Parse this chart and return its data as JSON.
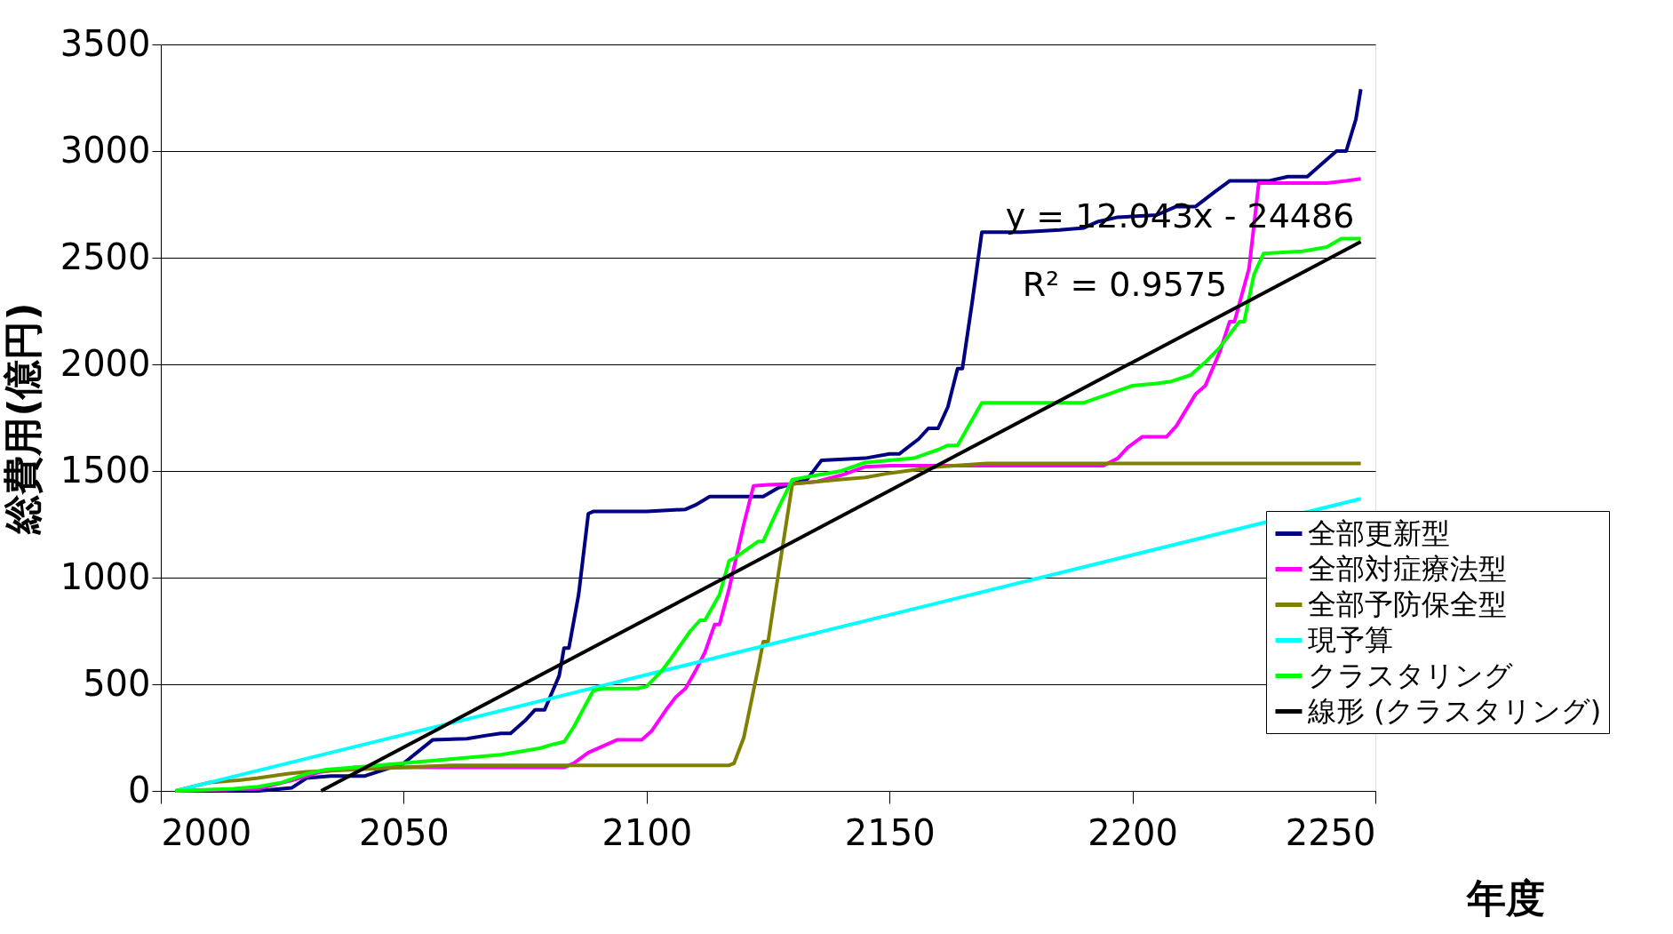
{
  "chart_data": {
    "type": "line",
    "xlabel": "年度",
    "ylabel": "総費用(億円)",
    "xlim": [
      2000,
      2250
    ],
    "xticks": [
      2000,
      2050,
      2100,
      2150,
      2200,
      2250
    ],
    "ylim": [
      0,
      3500
    ],
    "yticks": [
      0,
      500,
      1000,
      1500,
      2000,
      2500,
      3000,
      3500
    ],
    "grid": "y",
    "legend": "bottom right",
    "marker": "none",
    "line_style": "solid",
    "annotations": [
      "y = 12.043x - 24486",
      "R² = 0.9575"
    ],
    "series": [
      {
        "name": "全部更新型",
        "color": "#000080",
        "x": [
          2003,
          2020,
          2027,
          2030,
          2035,
          2042,
          2046,
          2050,
          2056,
          2063,
          2067,
          2070,
          2072,
          2075,
          2077,
          2079,
          2082,
          2083,
          2084,
          2086,
          2088,
          2089,
          2100,
          2108,
          2110,
          2113,
          2124,
          2127,
          2130,
          2133,
          2136,
          2145,
          2150,
          2152,
          2156,
          2158,
          2160,
          2162,
          2164,
          2165,
          2167,
          2169,
          2177,
          2185,
          2190,
          2193,
          2197,
          2205,
          2209,
          2213,
          2217,
          2220,
          2228,
          2232,
          2236,
          2240,
          2242,
          2244,
          2246,
          2247
        ],
        "values": [
          0,
          0,
          15,
          60,
          70,
          70,
          100,
          130,
          240,
          245,
          260,
          270,
          270,
          330,
          380,
          380,
          540,
          670,
          670,
          920,
          1300,
          1310,
          1310,
          1320,
          1340,
          1380,
          1380,
          1420,
          1440,
          1460,
          1550,
          1560,
          1580,
          1580,
          1650,
          1700,
          1700,
          1800,
          1980,
          1980,
          2290,
          2620,
          2620,
          2630,
          2640,
          2670,
          2690,
          2700,
          2740,
          2740,
          2810,
          2860,
          2860,
          2880,
          2880,
          2960,
          3000,
          3000,
          3150,
          3290
        ]
      },
      {
        "name": "全部対症療法型",
        "color": "#ff00ff",
        "x": [
          2003,
          2020,
          2027,
          2033,
          2040,
          2083,
          2085,
          2088,
          2091,
          2094,
          2099,
          2101,
          2104,
          2106,
          2108,
          2110,
          2112,
          2114,
          2115,
          2117,
          2120,
          2122,
          2125,
          2130,
          2135,
          2140,
          2145,
          2150,
          2194,
          2197,
          2199,
          2202,
          2207,
          2209,
          2213,
          2215,
          2218,
          2220,
          2221,
          2224,
          2226,
          2240,
          2244,
          2247
        ],
        "values": [
          0,
          10,
          50,
          90,
          110,
          110,
          130,
          180,
          210,
          240,
          240,
          280,
          380,
          440,
          480,
          560,
          650,
          780,
          780,
          950,
          1250,
          1430,
          1435,
          1440,
          1450,
          1480,
          1520,
          1525,
          1525,
          1560,
          1610,
          1660,
          1660,
          1710,
          1860,
          1900,
          2060,
          2200,
          2200,
          2450,
          2850,
          2850,
          2860,
          2870
        ]
      },
      {
        "name": "全部予防保全型",
        "color": "#808000",
        "x": [
          2003,
          2010,
          2016,
          2020,
          2026,
          2030,
          2040,
          2050,
          2060,
          2117,
          2118,
          2120,
          2123,
          2124,
          2125,
          2127,
          2130,
          2135,
          2140,
          2145,
          2150,
          2160,
          2170,
          2247
        ],
        "values": [
          0,
          40,
          50,
          60,
          80,
          90,
          100,
          110,
          120,
          120,
          130,
          250,
          580,
          700,
          700,
          1000,
          1440,
          1450,
          1460,
          1470,
          1490,
          1520,
          1535,
          1535
        ]
      },
      {
        "name": "現予算",
        "color": "#00ffff",
        "x": [
          2003,
          2247
        ],
        "values": [
          0,
          1370
        ]
      },
      {
        "name": "クラスタリング",
        "color": "#00ff00",
        "x": [
          2003,
          2015,
          2020,
          2025,
          2030,
          2034,
          2040,
          2050,
          2060,
          2070,
          2078,
          2081,
          2083,
          2085,
          2089,
          2091,
          2098,
          2100,
          2103,
          2105,
          2109,
          2111,
          2112,
          2115,
          2117,
          2118,
          2123,
          2124,
          2127,
          2130,
          2135,
          2140,
          2145,
          2155,
          2160,
          2162,
          2164,
          2169,
          2190,
          2195,
          2200,
          2205,
          2208,
          2212,
          2215,
          2218,
          2222,
          2223,
          2225,
          2227,
          2235,
          2240,
          2243,
          2247
        ],
        "values": [
          0,
          10,
          20,
          40,
          80,
          100,
          110,
          130,
          150,
          170,
          200,
          220,
          230,
          300,
          470,
          480,
          480,
          490,
          560,
          620,
          750,
          800,
          800,
          920,
          1080,
          1090,
          1170,
          1170,
          1320,
          1460,
          1480,
          1500,
          1540,
          1560,
          1600,
          1620,
          1620,
          1820,
          1820,
          1860,
          1900,
          1910,
          1920,
          1950,
          2010,
          2080,
          2200,
          2200,
          2420,
          2520,
          2530,
          2550,
          2590,
          2590
        ]
      },
      {
        "name": "線形 (クラスタリング)",
        "color": "#000000",
        "type": "line",
        "x": [
          2033,
          2247
        ],
        "values": [
          0,
          2575
        ]
      }
    ]
  }
}
